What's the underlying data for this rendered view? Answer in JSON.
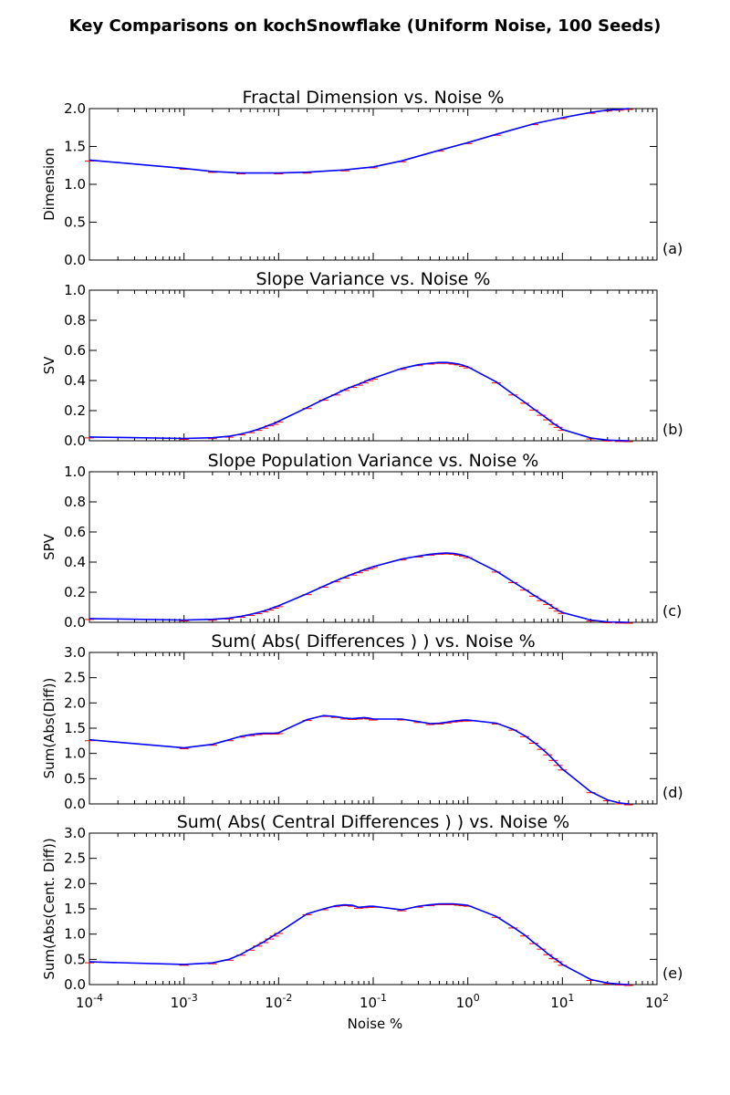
{
  "figure": {
    "title": "Key Comparisons on kochSnowflake (Uniform Noise, 100 Seeds)",
    "xlabel": "Noise %"
  },
  "x_ticks": [
    {
      "value": 0.0001,
      "base": "10",
      "exp": "-4"
    },
    {
      "value": 0.001,
      "base": "10",
      "exp": "-3"
    },
    {
      "value": 0.01,
      "base": "10",
      "exp": "-2"
    },
    {
      "value": 0.1,
      "base": "10",
      "exp": "-1"
    },
    {
      "value": 1,
      "base": "10",
      "exp": "0"
    },
    {
      "value": 10,
      "base": "10",
      "exp": "1"
    },
    {
      "value": 100,
      "base": "10",
      "exp": "2"
    }
  ],
  "colors": {
    "line": "#0000ff",
    "errorbar": "#ff0000"
  },
  "chart_data": [
    {
      "type": "line",
      "title": "Fractal Dimension vs. Noise %",
      "ylabel": "Dimension",
      "panel_label": "(a)",
      "xscale": "log",
      "xlim": [
        0.0001,
        100
      ],
      "ylim": [
        0,
        2.0
      ],
      "yticks": [
        "0.0",
        "0.5",
        "1.0",
        "1.5",
        "2.0"
      ],
      "ytick_values": [
        0,
        0.5,
        1.0,
        1.5,
        2.0
      ],
      "x": [
        0.0001,
        0.001,
        0.002,
        0.004,
        0.01,
        0.02,
        0.05,
        0.1,
        0.2,
        0.5,
        1,
        2,
        5,
        10,
        20,
        30,
        40,
        50
      ],
      "y": [
        1.32,
        1.21,
        1.17,
        1.15,
        1.15,
        1.16,
        1.19,
        1.23,
        1.31,
        1.45,
        1.55,
        1.66,
        1.8,
        1.88,
        1.95,
        1.98,
        1.99,
        2.0
      ]
    },
    {
      "type": "line",
      "title": "Slope Variance vs. Noise %",
      "ylabel": "SV",
      "panel_label": "(b)",
      "xscale": "log",
      "xlim": [
        0.0001,
        100
      ],
      "ylim": [
        0,
        1.0
      ],
      "yticks": [
        "0.0",
        "0.2",
        "0.4",
        "0.6",
        "0.8",
        "1.0"
      ],
      "ytick_values": [
        0,
        0.2,
        0.4,
        0.6,
        0.8,
        1.0
      ],
      "x": [
        0.0001,
        0.001,
        0.002,
        0.003,
        0.004,
        0.005,
        0.006,
        0.007,
        0.008,
        0.009,
        0.01,
        0.02,
        0.03,
        0.04,
        0.05,
        0.06,
        0.07,
        0.08,
        0.09,
        0.1,
        0.2,
        0.3,
        0.4,
        0.5,
        0.6,
        0.7,
        0.8,
        0.9,
        1,
        2,
        3,
        4,
        5,
        6,
        7,
        8,
        9,
        10,
        20,
        30,
        40,
        50
      ],
      "y": [
        0.025,
        0.015,
        0.02,
        0.03,
        0.045,
        0.06,
        0.075,
        0.09,
        0.105,
        0.115,
        0.13,
        0.22,
        0.275,
        0.31,
        0.34,
        0.36,
        0.375,
        0.39,
        0.405,
        0.415,
        0.48,
        0.505,
        0.515,
        0.52,
        0.52,
        0.515,
        0.51,
        0.5,
        0.49,
        0.39,
        0.31,
        0.255,
        0.21,
        0.175,
        0.145,
        0.115,
        0.095,
        0.075,
        0.018,
        0.004,
        0.001,
        0.0
      ]
    },
    {
      "type": "line",
      "title": "Slope Population Variance vs. Noise %",
      "ylabel": "SPV",
      "panel_label": "(c)",
      "xscale": "log",
      "xlim": [
        0.0001,
        100
      ],
      "ylim": [
        0,
        1.0
      ],
      "yticks": [
        "0.0",
        "0.2",
        "0.4",
        "0.6",
        "0.8",
        "1.0"
      ],
      "ytick_values": [
        0,
        0.2,
        0.4,
        0.6,
        0.8,
        1.0
      ],
      "x": [
        0.0001,
        0.001,
        0.002,
        0.003,
        0.004,
        0.005,
        0.006,
        0.007,
        0.008,
        0.009,
        0.01,
        0.02,
        0.03,
        0.04,
        0.05,
        0.06,
        0.07,
        0.08,
        0.09,
        0.1,
        0.2,
        0.3,
        0.4,
        0.5,
        0.6,
        0.7,
        0.8,
        0.9,
        1,
        2,
        3,
        4,
        5,
        6,
        7,
        8,
        9,
        10,
        20,
        30,
        40,
        50
      ],
      "y": [
        0.025,
        0.015,
        0.02,
        0.028,
        0.04,
        0.052,
        0.064,
        0.076,
        0.088,
        0.1,
        0.11,
        0.19,
        0.24,
        0.275,
        0.3,
        0.32,
        0.335,
        0.35,
        0.36,
        0.37,
        0.42,
        0.44,
        0.452,
        0.458,
        0.46,
        0.458,
        0.452,
        0.445,
        0.435,
        0.34,
        0.27,
        0.22,
        0.18,
        0.15,
        0.125,
        0.1,
        0.08,
        0.065,
        0.015,
        0.003,
        0.001,
        0.0
      ]
    },
    {
      "type": "line",
      "title": "Sum( Abs( Differences ) ) vs. Noise %",
      "ylabel": "Sum(Abs(Diff))",
      "panel_label": "(d)",
      "xscale": "log",
      "xlim": [
        0.0001,
        100
      ],
      "ylim": [
        0,
        3.0
      ],
      "yticks": [
        "0.0",
        "0.5",
        "1.0",
        "1.5",
        "2.0",
        "2.5",
        "3.0"
      ],
      "ytick_values": [
        0,
        0.5,
        1.0,
        1.5,
        2.0,
        2.5,
        3.0
      ],
      "x": [
        0.0001,
        0.001,
        0.002,
        0.003,
        0.004,
        0.005,
        0.006,
        0.007,
        0.008,
        0.009,
        0.01,
        0.02,
        0.03,
        0.04,
        0.05,
        0.06,
        0.07,
        0.08,
        0.09,
        0.1,
        0.2,
        0.3,
        0.4,
        0.5,
        0.6,
        0.7,
        0.8,
        0.9,
        1,
        2,
        3,
        4,
        5,
        6,
        7,
        8,
        9,
        10,
        20,
        30,
        40,
        50
      ],
      "y": [
        1.27,
        1.11,
        1.18,
        1.27,
        1.34,
        1.37,
        1.39,
        1.4,
        1.4,
        1.4,
        1.41,
        1.67,
        1.75,
        1.73,
        1.7,
        1.69,
        1.7,
        1.71,
        1.7,
        1.68,
        1.68,
        1.63,
        1.59,
        1.6,
        1.62,
        1.64,
        1.65,
        1.66,
        1.66,
        1.6,
        1.48,
        1.35,
        1.22,
        1.1,
        0.99,
        0.88,
        0.78,
        0.69,
        0.24,
        0.08,
        0.02,
        0.0
      ]
    },
    {
      "type": "line",
      "title": "Sum( Abs( Central Differences ) ) vs. Noise %",
      "ylabel": "Sum(Abs(Cent. Diff))",
      "panel_label": "(e)",
      "xscale": "log",
      "xlim": [
        0.0001,
        100
      ],
      "ylim": [
        0,
        3.0
      ],
      "yticks": [
        "0.0",
        "0.5",
        "1.0",
        "1.5",
        "2.0",
        "2.5",
        "3.0"
      ],
      "ytick_values": [
        0,
        0.5,
        1.0,
        1.5,
        2.0,
        2.5,
        3.0
      ],
      "x": [
        0.0001,
        0.001,
        0.002,
        0.003,
        0.004,
        0.005,
        0.006,
        0.007,
        0.008,
        0.009,
        0.01,
        0.02,
        0.03,
        0.04,
        0.05,
        0.06,
        0.07,
        0.08,
        0.09,
        0.1,
        0.2,
        0.3,
        0.4,
        0.5,
        0.6,
        0.7,
        0.8,
        0.9,
        1,
        2,
        3,
        4,
        5,
        6,
        7,
        8,
        9,
        10,
        20,
        30,
        40,
        50
      ],
      "y": [
        0.45,
        0.4,
        0.43,
        0.5,
        0.6,
        0.7,
        0.78,
        0.85,
        0.92,
        0.98,
        1.03,
        1.4,
        1.5,
        1.56,
        1.58,
        1.57,
        1.53,
        1.54,
        1.55,
        1.55,
        1.48,
        1.55,
        1.58,
        1.6,
        1.6,
        1.6,
        1.59,
        1.58,
        1.57,
        1.35,
        1.14,
        0.98,
        0.83,
        0.72,
        0.61,
        0.53,
        0.47,
        0.4,
        0.1,
        0.03,
        0.01,
        0.0
      ]
    }
  ]
}
